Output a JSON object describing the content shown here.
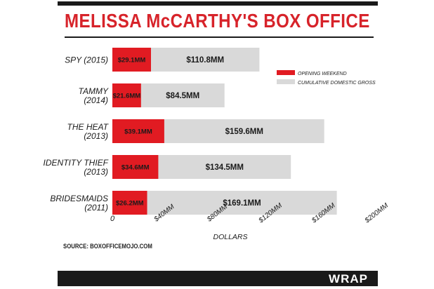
{
  "chart_data": {
    "type": "bar",
    "orientation": "horizontal",
    "stacked": true,
    "title": "MELISSA McCARTHY'S BOX OFFICE",
    "xlabel": "DOLLARS",
    "ylabel": "",
    "xlim": [
      0,
      200
    ],
    "x_ticks": [
      "0",
      "$40MM",
      "$80MM",
      "$120MM",
      "$160MM",
      "$200MM"
    ],
    "x_tick_values": [
      0,
      40,
      80,
      120,
      160,
      200
    ],
    "legend_position": "top-right",
    "grid": false,
    "categories": [
      [
        "SPY (2015)"
      ],
      [
        "TAMMY",
        "(2014)"
      ],
      [
        "THE HEAT",
        "(2013)"
      ],
      [
        "IDENTITY THIEF",
        "(2013)"
      ],
      [
        "BRIDESMAIDS",
        "(2011)"
      ]
    ],
    "series": [
      {
        "name": "OPENING WEEKEND",
        "color": "#e11b22",
        "values": [
          29.1,
          21.6,
          39.1,
          34.6,
          26.2
        ],
        "labels": [
          "$29.1MM",
          "$21.6MM",
          "$39.1MM",
          "$34.6MM",
          "$26.2MM"
        ]
      },
      {
        "name": "CUMULATIVE DOMESTIC GROSS",
        "color": "#d9d9d9",
        "values": [
          110.8,
          84.5,
          159.6,
          134.5,
          169.1
        ],
        "labels": [
          "$110.8MM",
          "$84.5MM",
          "$159.6MM",
          "$134.5MM",
          "$169.1MM"
        ]
      }
    ]
  },
  "source": "SOURCE: BOXOFFICEMOJO.COM",
  "brand": "WRAP"
}
